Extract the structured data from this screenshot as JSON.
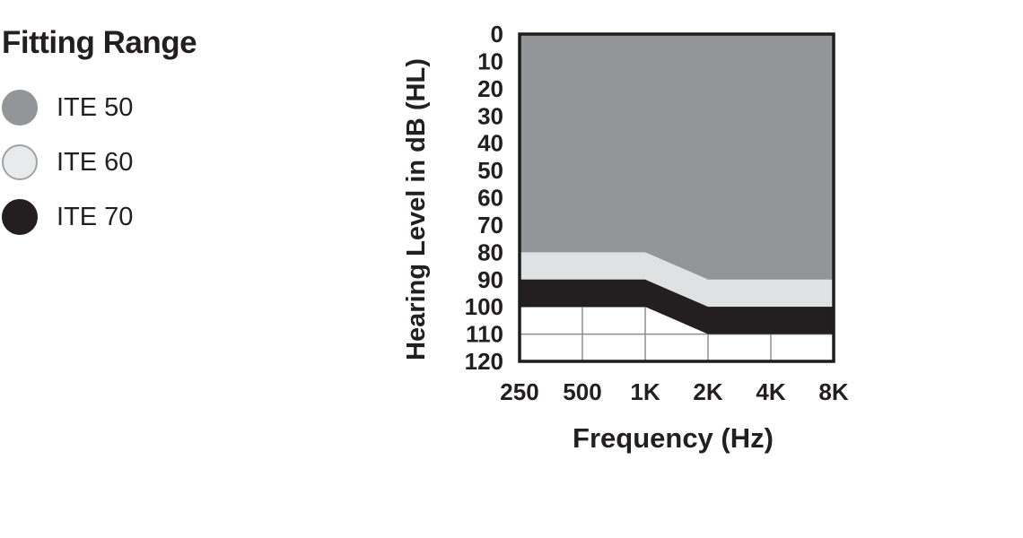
{
  "legend": {
    "title": "Fitting Range",
    "items": [
      {
        "label": "ITE 50",
        "color": "#939598",
        "border": "#939598"
      },
      {
        "label": "ITE 60",
        "color": "#e9eaeb",
        "border": "#a0a2a5"
      },
      {
        "label": "ITE 70",
        "color": "#231f20",
        "border": "#231f20"
      }
    ]
  },
  "chart_data": {
    "type": "area",
    "title": "Fitting Range",
    "xlabel": "Frequency (Hz)",
    "ylabel": "Hearing Level in dB (HL)",
    "x_categories": [
      "250",
      "500",
      "1K",
      "2K",
      "4K",
      "8K"
    ],
    "y_ticks": [
      0,
      10,
      20,
      30,
      40,
      50,
      60,
      70,
      80,
      90,
      100,
      110,
      120
    ],
    "ylim": [
      0,
      120
    ],
    "y_axis_inverted": true,
    "series": [
      {
        "name": "ITE 50",
        "color": "#939598",
        "upper_db": [
          0,
          0,
          0,
          0,
          0,
          0
        ],
        "lower_db": [
          80,
          80,
          80,
          90,
          90,
          90
        ]
      },
      {
        "name": "ITE 60",
        "color": "#e0e1e2",
        "upper_db": [
          80,
          80,
          80,
          90,
          90,
          90
        ],
        "lower_db": [
          90,
          90,
          90,
          100,
          100,
          100
        ]
      },
      {
        "name": "ITE 70",
        "color": "#231f20",
        "upper_db": [
          90,
          90,
          90,
          100,
          100,
          100
        ],
        "lower_db": [
          100,
          100,
          100,
          110,
          110,
          110
        ]
      }
    ],
    "grid": {
      "vertical_at": [
        "500",
        "1K",
        "2K",
        "4K"
      ],
      "horizontal_at": [
        10,
        20,
        30,
        40,
        50,
        60,
        70,
        80,
        90,
        100,
        110
      ],
      "grid_color": "#8b8d90",
      "border_color": "#1d1d1b",
      "plot_background": "#ffffff"
    }
  }
}
